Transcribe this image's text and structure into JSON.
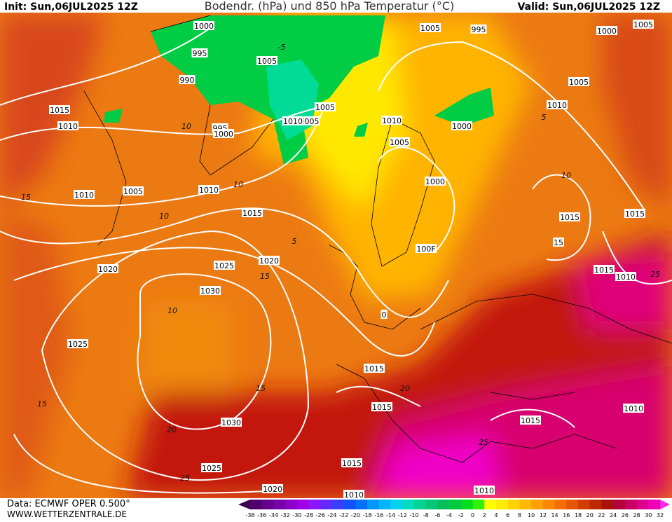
{
  "header": {
    "init": "Init: Sun,06JUL2025 12Z",
    "title": "Bodendr. (hPa) und 850 hPa Temperatur (°C)",
    "valid": "Valid: Sun,06JUL2025 12Z"
  },
  "footer": {
    "data": "Data: ECMWF OPER 0.500°",
    "site": "WWW.WETTERZENTRALE.DE"
  },
  "isobar_labels": [
    "1000",
    "995",
    "990",
    "1005",
    "1005",
    "995",
    "1000",
    "1005",
    "1005",
    "1010",
    "1015",
    "1010",
    "995",
    "1000",
    "1005",
    "1010",
    "005",
    "1010",
    "1000",
    "1005",
    "1010",
    "1005",
    "1010",
    "1000",
    "1015",
    "1015",
    "1015",
    "15",
    "100F",
    "1020",
    "1025",
    "1020",
    "1015",
    "1010",
    "1030",
    "0",
    "1025",
    "1015",
    "1015",
    "1010",
    "1015",
    "1030",
    "1015",
    "1025",
    "1020",
    "1010",
    "1010"
  ],
  "temperature_labels": [
    "-5",
    "10",
    "10",
    "10",
    "5",
    "15",
    "10",
    "15",
    "20",
    "25",
    "15",
    "20",
    "25",
    "5",
    "10",
    "15",
    "25"
  ],
  "colorbar": {
    "labels": [
      "-38",
      "-36",
      "-34",
      "-32",
      "-30",
      "-28",
      "-26",
      "-24",
      "-22",
      "-20",
      "-18",
      "-16",
      "-14",
      "-12",
      "-10",
      "-8",
      "-6",
      "-4",
      "-2",
      "0",
      "2",
      "4",
      "6",
      "8",
      "10",
      "12",
      "14",
      "16",
      "18",
      "20",
      "22",
      "24",
      "26",
      "28",
      "30",
      "32"
    ],
    "colors": [
      "#3c0050",
      "#50006e",
      "#64008c",
      "#7800aa",
      "#8c00c8",
      "#a000e6",
      "#8c14ff",
      "#6428ff",
      "#3c3cff",
      "#1450ff",
      "#0070ff",
      "#0096ff",
      "#00b4ff",
      "#00d2f0",
      "#00dcc0",
      "#00d296",
      "#00c878",
      "#00be5a",
      "#00c83c",
      "#00dc1e",
      "#32f000",
      "#ffff00",
      "#ffeb00",
      "#ffd200",
      "#ffb900",
      "#ffa000",
      "#ff8700",
      "#f56e00",
      "#e65500",
      "#d23c00",
      "#be2800",
      "#a8120a",
      "#b4003c",
      "#c80064",
      "#dc008c",
      "#f000b4",
      "#ff28e6"
    ]
  }
}
